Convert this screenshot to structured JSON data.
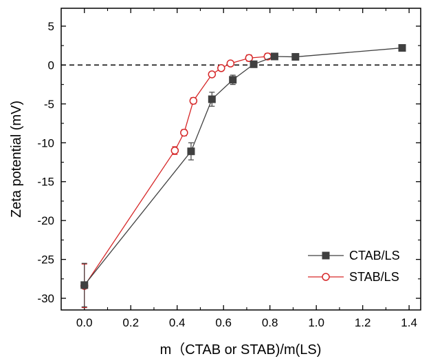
{
  "chart_data": {
    "type": "line",
    "title": "",
    "xlabel": "m（CTAB or STAB)/m(LS)",
    "ylabel": "Zeta potential (mV)",
    "xlim": [
      -0.1,
      1.45
    ],
    "ylim": [
      -31.5,
      7.3
    ],
    "xticks": [
      "0.0",
      "0.2",
      "0.4",
      "0.6",
      "0.8",
      "1.0",
      "1.2",
      "1.4"
    ],
    "yticks": [
      "5",
      "0",
      "-5",
      "-10",
      "-15",
      "-20",
      "-25",
      "-30"
    ],
    "xtick_values": [
      0.0,
      0.2,
      0.4,
      0.6,
      0.8,
      1.0,
      1.2,
      1.4
    ],
    "ytick_values": [
      5,
      0,
      -5,
      -10,
      -15,
      -20,
      -25,
      -30
    ],
    "reference_line": {
      "y": 0,
      "style": "dashed"
    },
    "legend_position": "bottom-right",
    "series": [
      {
        "name": "CTAB/LS",
        "color": "#404040",
        "marker": "filled-square",
        "x": [
          0.0,
          0.46,
          0.55,
          0.64,
          0.73,
          0.82,
          0.91,
          1.37
        ],
        "y": [
          -28.3,
          -11.1,
          -4.4,
          -1.9,
          0.1,
          1.1,
          1.05,
          2.2
        ],
        "error": [
          2.8,
          1.1,
          0.9,
          0.6,
          0.2,
          0.2,
          0.15,
          0.2
        ]
      },
      {
        "name": "STAB/LS",
        "color": "#d62728",
        "marker": "open-circle",
        "x": [
          0.0,
          0.39,
          0.43,
          0.47,
          0.55,
          0.59,
          0.63,
          0.71,
          0.79
        ],
        "y": [
          -28.4,
          -11.0,
          -8.7,
          -4.6,
          -1.2,
          -0.4,
          0.2,
          0.9,
          1.1
        ],
        "error": [
          2.8,
          0.5,
          0.4,
          0.4,
          0.3,
          0.3,
          0.3,
          0.4,
          0.4
        ]
      }
    ]
  }
}
